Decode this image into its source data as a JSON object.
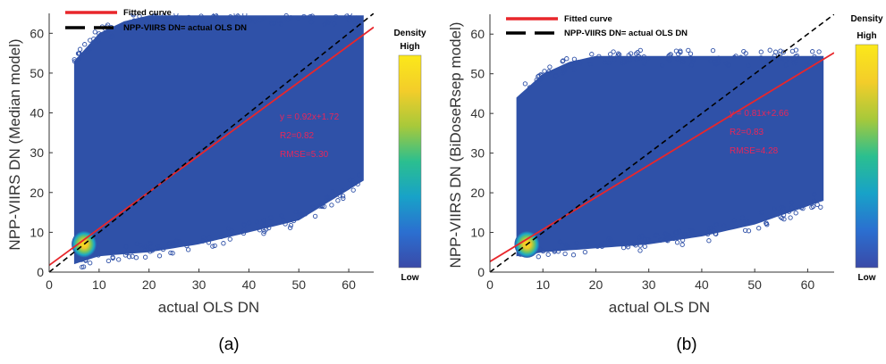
{
  "figure": {
    "panels": [
      {
        "caption": "(a)",
        "legend": {
          "fitted_label": "Fitted curve",
          "identity_label": "NPP-VIIRS DN= actual OLS DN"
        },
        "colorbar": {
          "title": "Density",
          "high_label": "High",
          "low_label": "Low"
        },
        "annotation": {
          "equation": "y = 0.92x+1.72",
          "r2": "R2=0.82",
          "rmse": "RMSE=5.30"
        }
      },
      {
        "caption": "(b)",
        "legend": {
          "fitted_label": "Fitted curve",
          "identity_label": "NPP-VIIRS DN= actual OLS DN"
        },
        "colorbar": {
          "title": "Density",
          "high_label": "High",
          "low_label": "Low"
        },
        "annotation": {
          "equation": "y = 0.81x+2.66",
          "r2": "R2=0.83",
          "rmse": "RMSE=4.28"
        }
      }
    ],
    "colors": {
      "fitted_line": "#e8262b",
      "identity_line": "#000000",
      "cloud": "#2f51a8",
      "annotation_text": "#e8265a",
      "colormap": [
        "#3a4aa8",
        "#2b6fd0",
        "#18a2c8",
        "#2bbf8f",
        "#a8c93a",
        "#f3cd2a",
        "#fbe81a"
      ]
    }
  },
  "chart_data": [
    {
      "type": "scatter",
      "title": "",
      "xlabel": "actual OLS DN",
      "ylabel": "NPP-VIIRS DN (Median model)",
      "xlim": [
        0,
        65
      ],
      "ylim": [
        0,
        65
      ],
      "xticks": [
        0,
        10,
        20,
        30,
        40,
        50,
        60
      ],
      "yticks": [
        0,
        10,
        20,
        30,
        40,
        50,
        60
      ],
      "grid": false,
      "legend_position": "top-left (outside plot)",
      "series": [
        {
          "name": "Fitted curve",
          "kind": "line",
          "style": "solid",
          "color": "#e8262b",
          "x": [
            0,
            65
          ],
          "y": [
            1.72,
            61.52
          ]
        },
        {
          "name": "NPP-VIIRS DN= actual OLS DN",
          "kind": "line",
          "style": "dashed",
          "color": "#000000",
          "x": [
            0,
            65
          ],
          "y": [
            0,
            65
          ]
        }
      ],
      "scatter_extent": {
        "x": [
          5,
          63
        ],
        "y_upper": [
          [
            5,
            53
          ],
          [
            10,
            60
          ],
          [
            15,
            63
          ],
          [
            20,
            64.5
          ],
          [
            63,
            64.5
          ]
        ],
        "y_lower": [
          [
            5,
            2
          ],
          [
            10,
            4
          ],
          [
            20,
            5
          ],
          [
            30,
            7
          ],
          [
            40,
            10
          ],
          [
            50,
            13
          ],
          [
            63,
            23
          ]
        ]
      },
      "density_peak": {
        "x": 7,
        "y": 7
      },
      "annotation": {
        "equation": "y = 0.92x+1.72",
        "r2": 0.82,
        "rmse": 5.3
      }
    },
    {
      "type": "scatter",
      "title": "",
      "xlabel": "actual OLS DN",
      "ylabel": "NPP-VIIRS DN (BiDoseRsep model)",
      "xlim": [
        0,
        65
      ],
      "ylim": [
        0,
        65
      ],
      "xticks": [
        0,
        10,
        20,
        30,
        40,
        50,
        60
      ],
      "yticks": [
        0,
        10,
        20,
        30,
        40,
        50,
        60
      ],
      "grid": false,
      "legend_position": "top-left (outside plot)",
      "series": [
        {
          "name": "Fitted curve",
          "kind": "line",
          "style": "solid",
          "color": "#e8262b",
          "x": [
            0,
            65
          ],
          "y": [
            2.66,
            55.31
          ]
        },
        {
          "name": "NPP-VIIRS DN= actual OLS DN",
          "kind": "line",
          "style": "dashed",
          "color": "#000000",
          "x": [
            0,
            65
          ],
          "y": [
            0,
            65
          ]
        }
      ],
      "scatter_extent": {
        "x": [
          5,
          63
        ],
        "y_upper": [
          [
            5,
            44
          ],
          [
            10,
            50
          ],
          [
            15,
            53
          ],
          [
            20,
            54.5
          ],
          [
            63,
            54.5
          ]
        ],
        "y_lower": [
          [
            5,
            4
          ],
          [
            10,
            5
          ],
          [
            20,
            6
          ],
          [
            30,
            7
          ],
          [
            40,
            9
          ],
          [
            50,
            12
          ],
          [
            63,
            18
          ]
        ]
      },
      "density_peak": {
        "x": 7,
        "y": 7
      },
      "annotation": {
        "equation": "y = 0.81x+2.66",
        "r2": 0.83,
        "rmse": 4.28
      }
    }
  ]
}
